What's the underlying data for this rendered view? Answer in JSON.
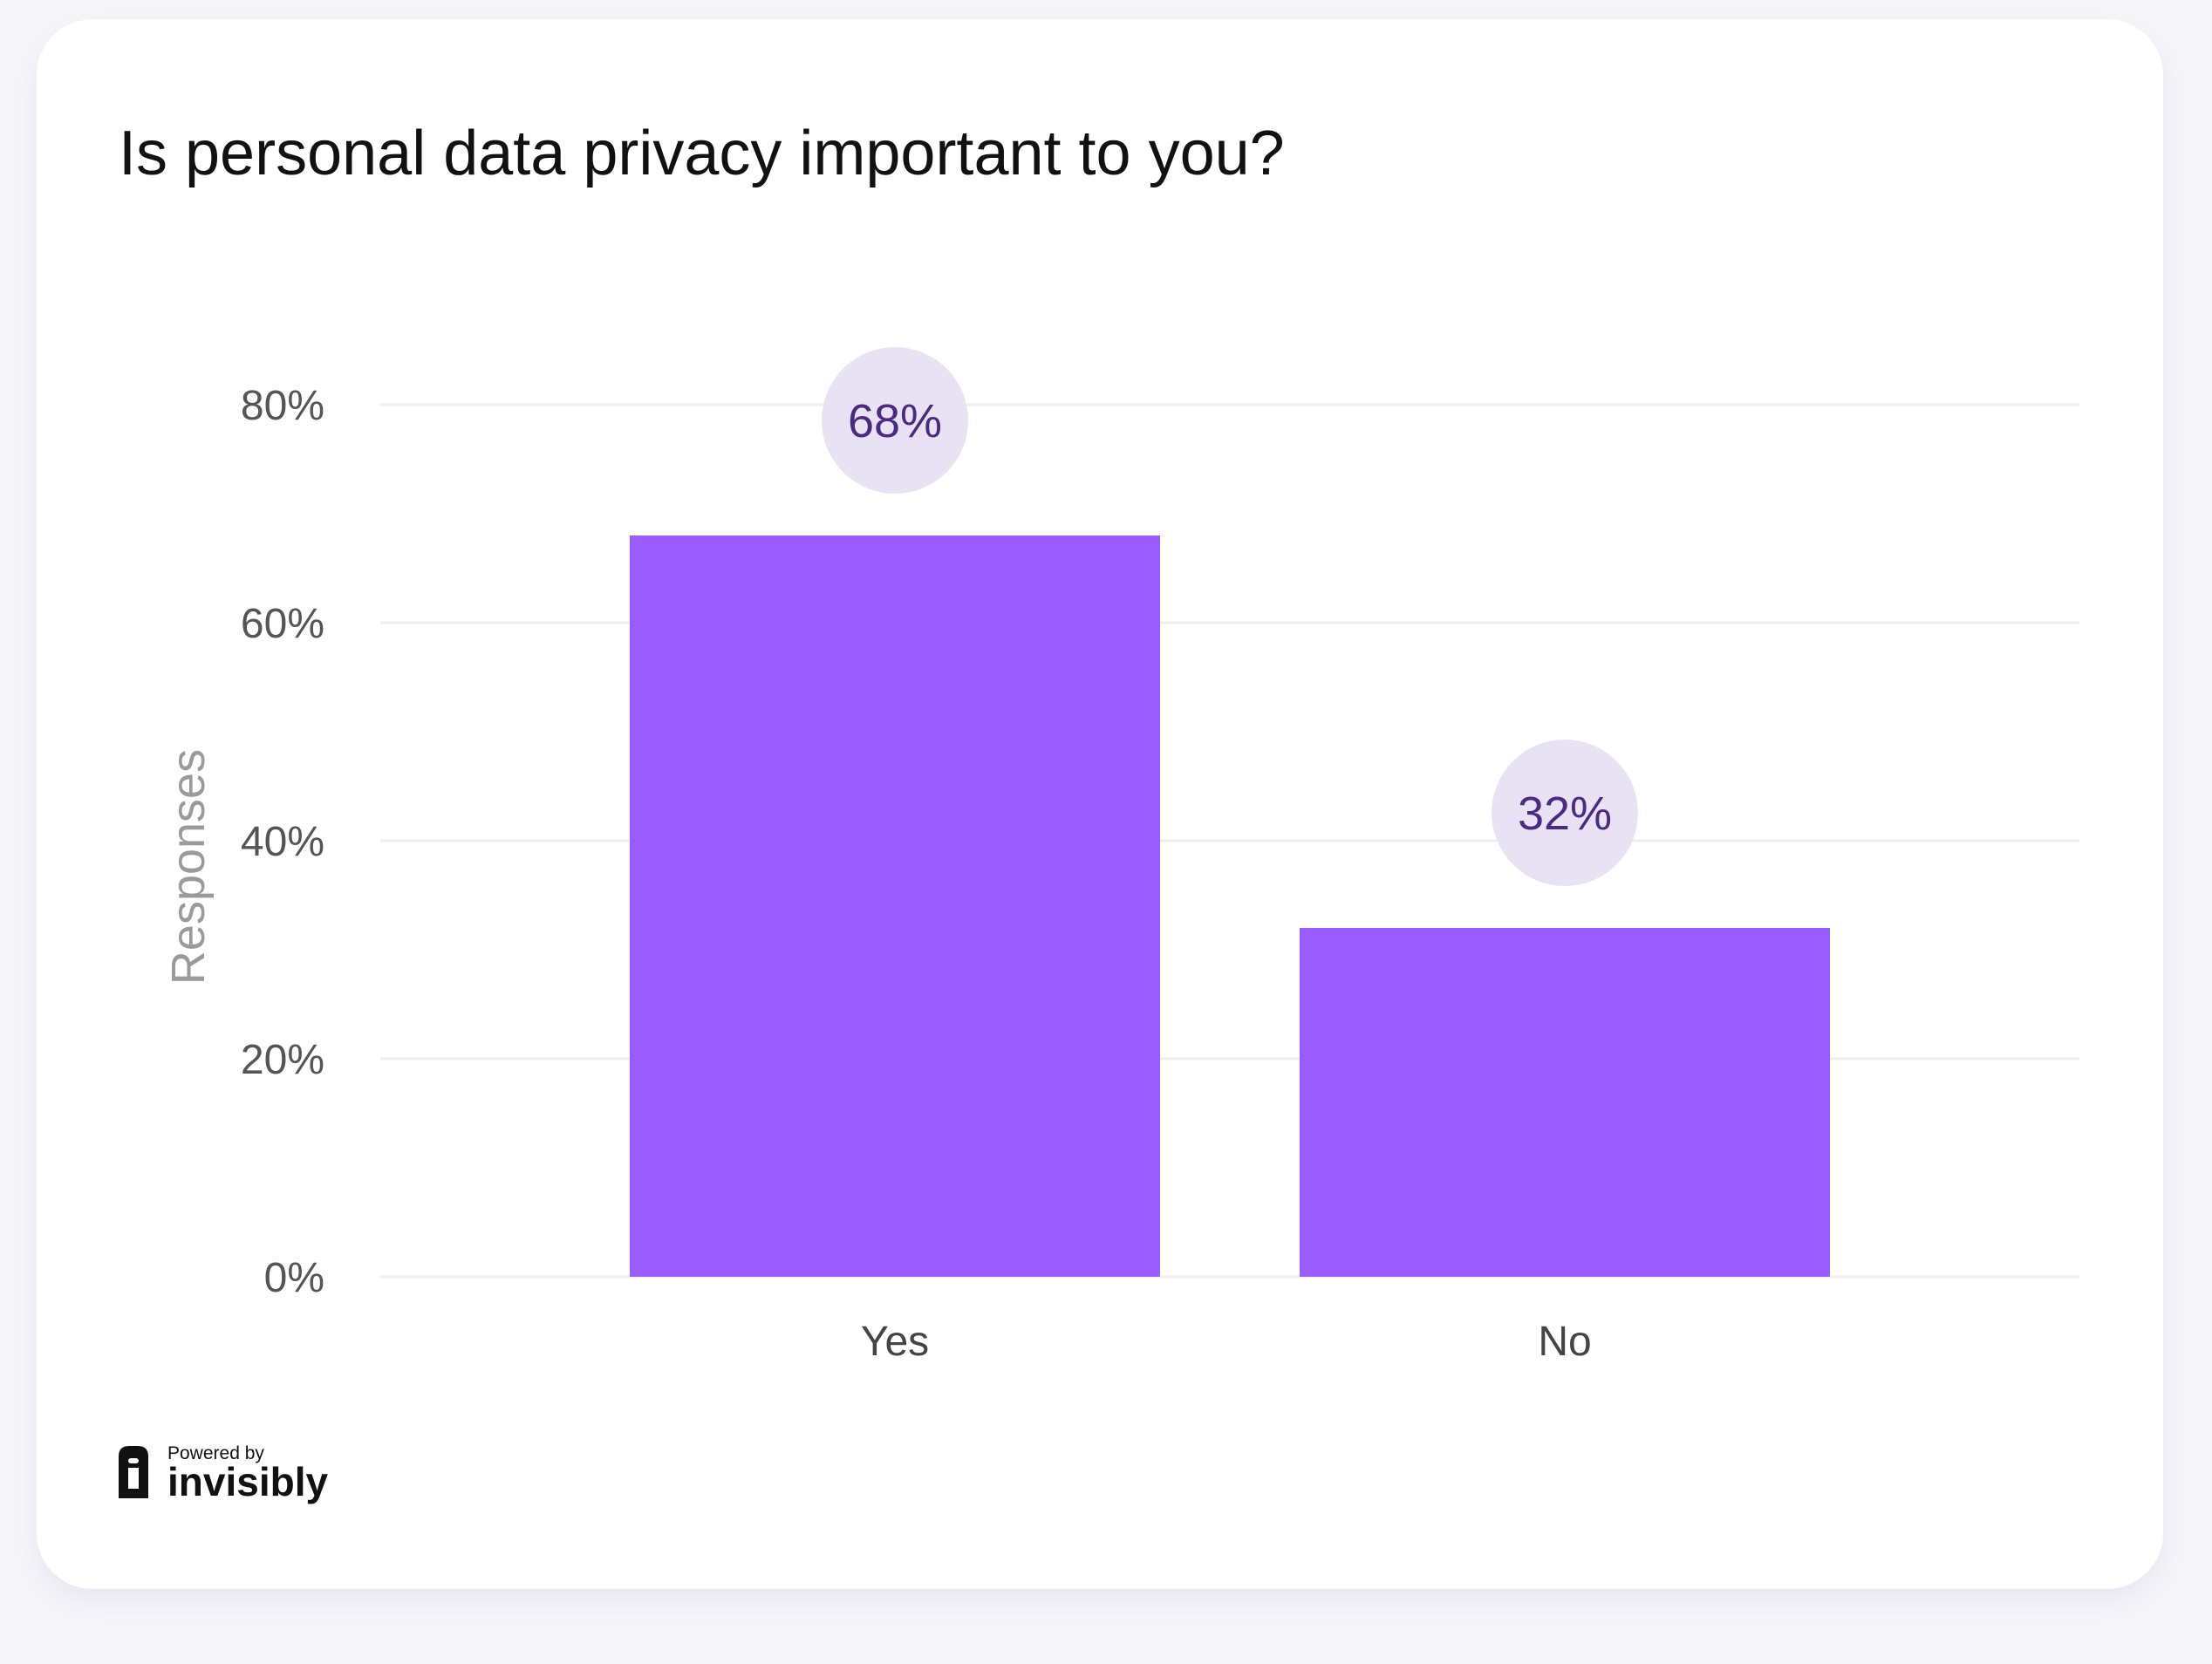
{
  "chart_data": {
    "type": "bar",
    "title": "Is personal data privacy important to you?",
    "ylabel": "Responses",
    "xlabel": "",
    "categories": [
      "Yes",
      "No"
    ],
    "values": [
      68,
      32
    ],
    "data_labels": [
      "68%",
      "32%"
    ],
    "ylim": [
      0,
      80
    ],
    "yticks": [
      0,
      20,
      40,
      60,
      80
    ],
    "ytick_labels": [
      "0%",
      "20%",
      "40%",
      "60%",
      "80%"
    ],
    "grid": true,
    "legend": "none",
    "colors": {
      "bar": "#9b5cff",
      "label_bubble": "#e9e1f4",
      "label_text": "#4b2a84",
      "gridline": "#eeeeee"
    }
  },
  "branding": {
    "powered_by": "Powered by",
    "brand_name": "invisibly",
    "logo_icon": "invisibly-logo-icon"
  }
}
